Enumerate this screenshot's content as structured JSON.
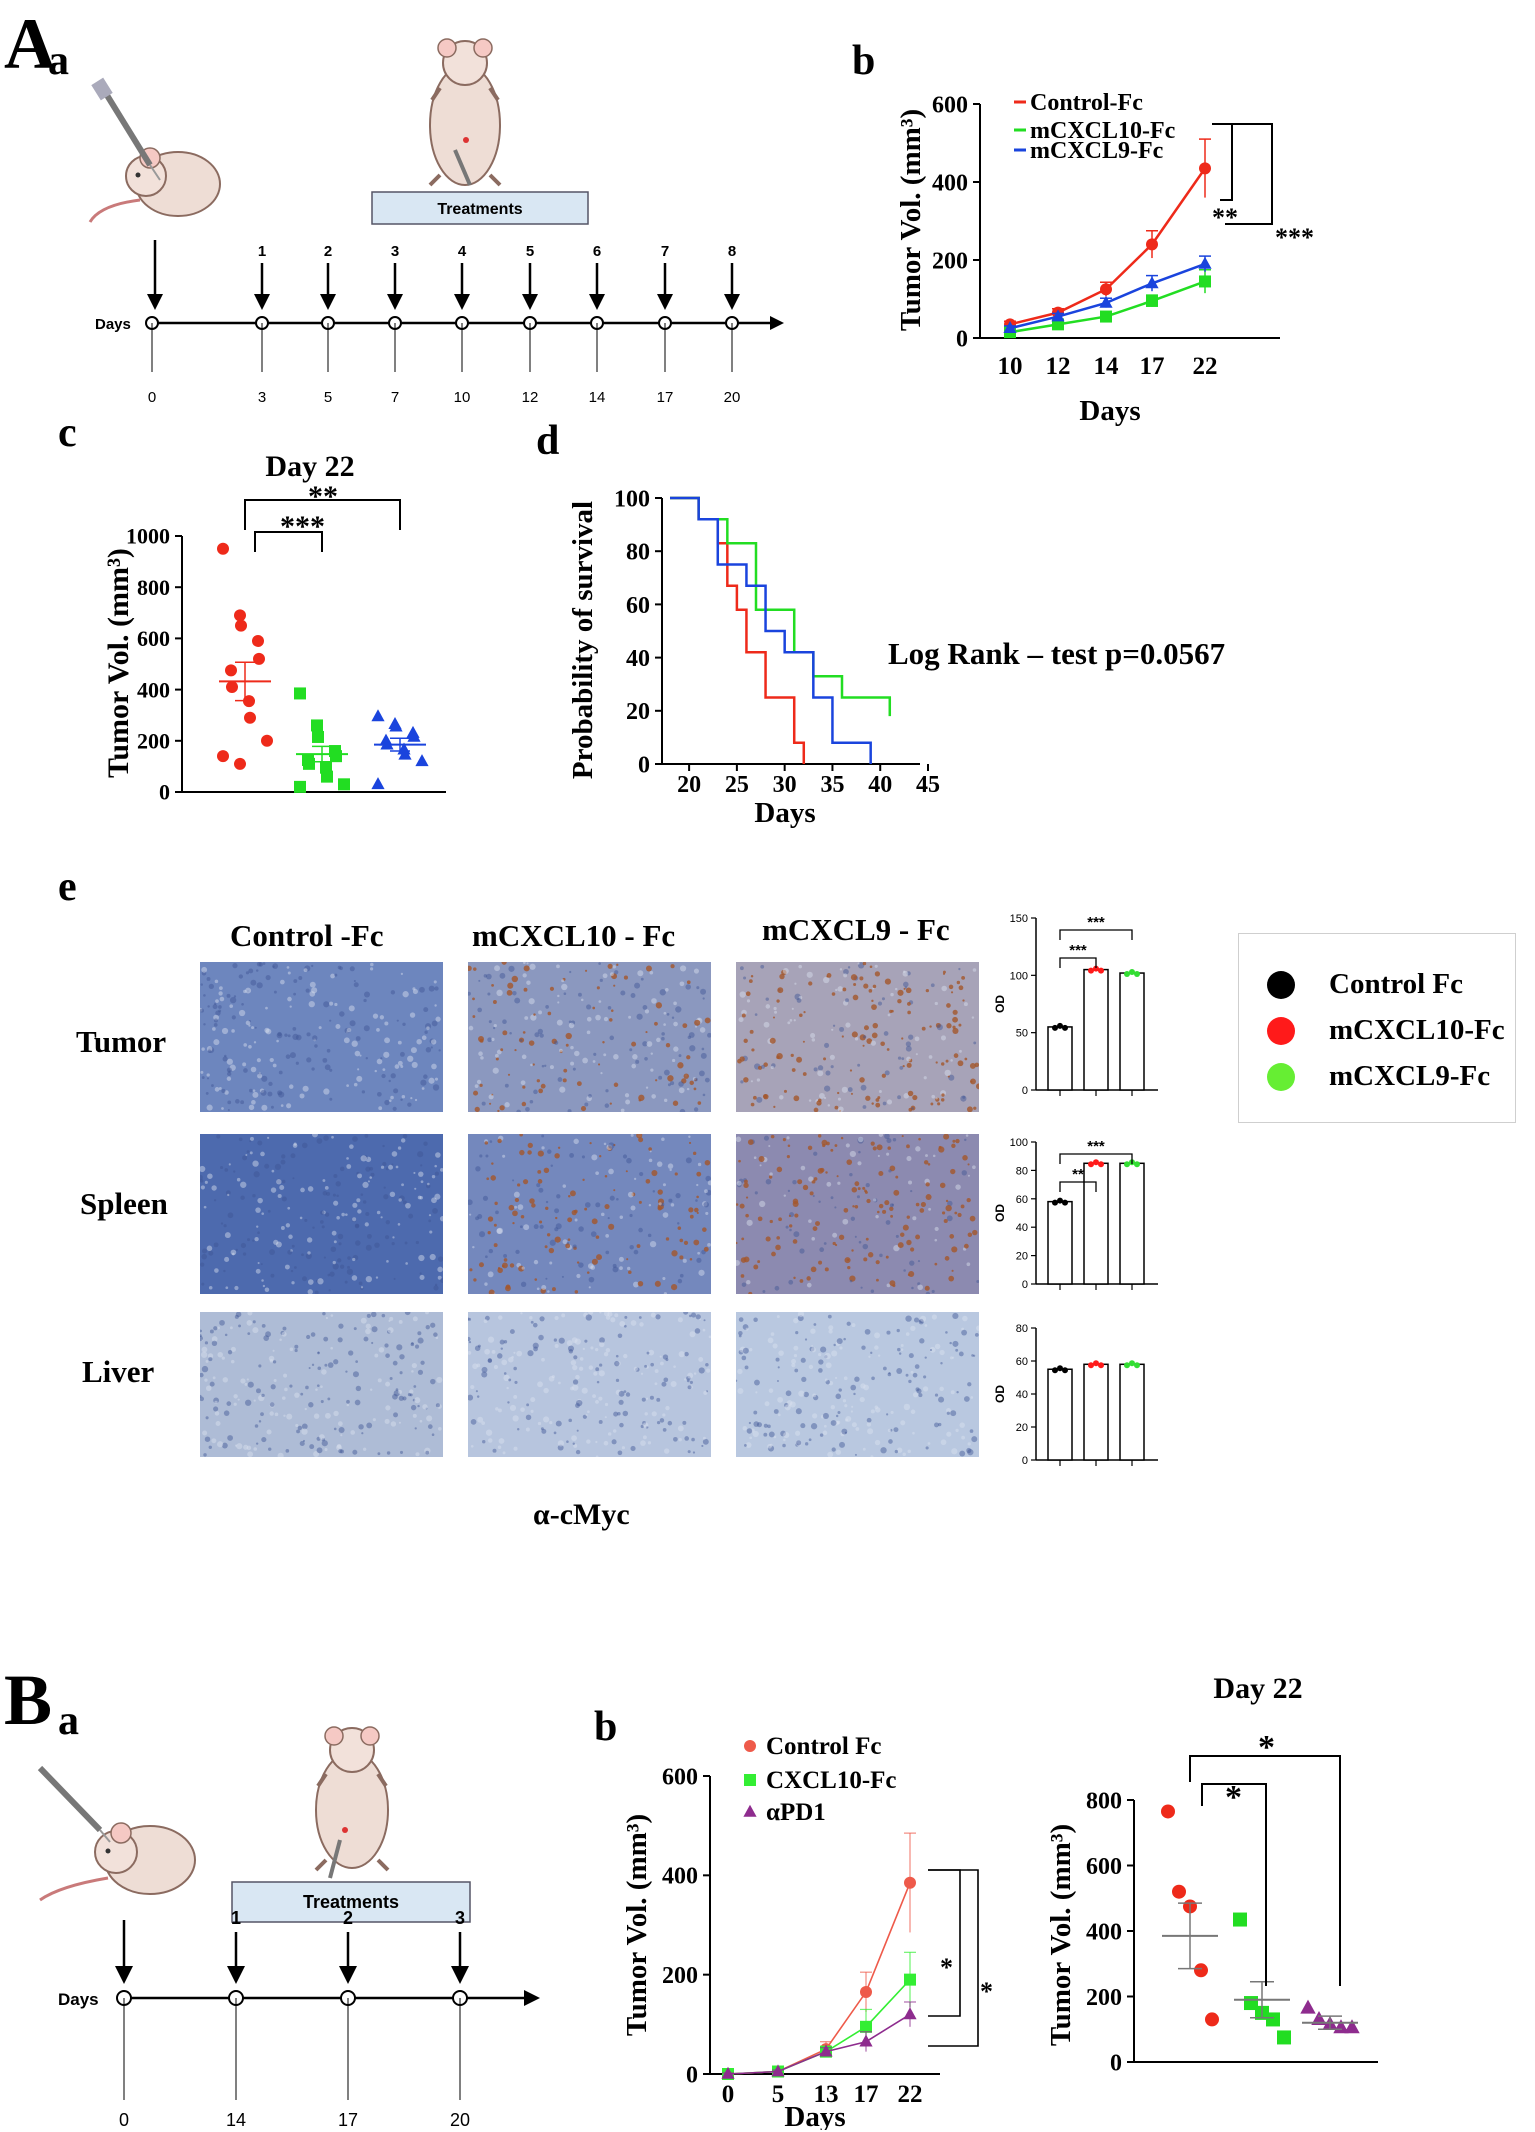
{
  "panel_A": {
    "label": "A",
    "sub_a": "a",
    "timeline": {
      "days_label": "Days",
      "treatment_box": "Treatments",
      "injection_numbers": [
        "1",
        "2",
        "3",
        "4",
        "5",
        "6",
        "7",
        "8"
      ],
      "day_ticks": [
        "0",
        "3",
        "5",
        "7",
        "10",
        "12",
        "14",
        "17",
        "20"
      ]
    },
    "sub_b": "b",
    "sub_c": "c",
    "sub_d": "d",
    "sub_e": "e",
    "log_rank": "Log Rank – test p=0.0567",
    "ihc": {
      "columns": [
        "Control -Fc",
        "mCXCL10 - Fc",
        "mCXCL9 - Fc"
      ],
      "rows": [
        "Tumor",
        "Spleen",
        "Liver"
      ],
      "stain": "α-cMyc",
      "legend": [
        {
          "label": "Control Fc",
          "color": "#000000"
        },
        {
          "label": "mCXCL10-Fc",
          "color": "#ff1a1a"
        },
        {
          "label": "mCXCL9-Fc",
          "color": "#66ee33"
        }
      ]
    }
  },
  "panel_B": {
    "label": "B",
    "sub_a": "a",
    "sub_b": "b",
    "timeline": {
      "days_label": "Days",
      "treatment_box": "Treatments",
      "injection_numbers": [
        "1",
        "2",
        "3"
      ],
      "day_ticks": [
        "0",
        "14",
        "17",
        "20"
      ]
    }
  },
  "colors": {
    "control": "#ee2a1a",
    "cxcl10": "#22dd22",
    "cxcl9": "#1a44dd",
    "apd1": "#8e2c8e",
    "ihc_blue": "#5f78b3",
    "ihc_brown": "#a8572b"
  },
  "chart_data": [
    {
      "id": "A_b",
      "type": "line",
      "title": "",
      "xlabel": "Days",
      "ylabel": "Tumor Vol. (mm3)",
      "categories": [
        "10",
        "12",
        "14",
        "17",
        "22"
      ],
      "ylim": [
        0,
        600
      ],
      "yticks": [
        "0",
        "200",
        "400",
        "600"
      ],
      "series": [
        {
          "name": "Control-Fc",
          "color": "#ee2a1a",
          "values": [
            35,
            65,
            125,
            240,
            435
          ],
          "err": [
            8,
            10,
            18,
            35,
            75
          ]
        },
        {
          "name": "mCXCL10-Fc",
          "color": "#22dd22",
          "values": [
            15,
            35,
            55,
            95,
            145
          ],
          "err": [
            5,
            6,
            10,
            15,
            30
          ]
        },
        {
          "name": "mCXCL9-Fc",
          "color": "#1a44dd",
          "values": [
            25,
            55,
            90,
            140,
            190
          ],
          "err": [
            6,
            8,
            12,
            20,
            20
          ]
        }
      ],
      "significance": [
        "**",
        "***"
      ]
    },
    {
      "id": "A_c",
      "type": "scatter",
      "title": "Day 22",
      "xlabel": "",
      "ylabel": "Tumor Vol. (mm3)",
      "ylim": [
        0,
        1000
      ],
      "yticks": [
        "0",
        "200",
        "400",
        "600",
        "800",
        "1000"
      ],
      "groups": [
        {
          "name": "Control-Fc",
          "color": "#ee2a1a",
          "marker": "circle",
          "mean": 432,
          "sem": 75,
          "values": [
            950,
            690,
            650,
            590,
            520,
            475,
            410,
            355,
            290,
            200,
            140,
            110
          ]
        },
        {
          "name": "mCXCL10-Fc",
          "color": "#22dd22",
          "marker": "square",
          "mean": 148,
          "sem": 30,
          "values": [
            385,
            260,
            215,
            160,
            140,
            125,
            110,
            95,
            60,
            30,
            20
          ]
        },
        {
          "name": "mCXCL9-Fc",
          "color": "#1a44dd",
          "marker": "triangle",
          "mean": 185,
          "sem": 25,
          "values": [
            295,
            265,
            255,
            230,
            215,
            200,
            185,
            165,
            145,
            120,
            30
          ]
        }
      ],
      "significance": [
        "***",
        "**"
      ]
    },
    {
      "id": "A_d",
      "type": "line",
      "title": "",
      "xlabel": "Days",
      "ylabel": "Probability of survival",
      "xlim": [
        18,
        45
      ],
      "xticks": [
        "20",
        "25",
        "30",
        "35",
        "40",
        "45"
      ],
      "ylim": [
        0,
        100
      ],
      "yticks": [
        "0",
        "20",
        "40",
        "60",
        "80",
        "100"
      ],
      "series": [
        {
          "name": "Control-Fc",
          "color": "#ee2a1a",
          "steps": [
            [
              18,
              100
            ],
            [
              21,
              100
            ],
            [
              21,
              92
            ],
            [
              23,
              92
            ],
            [
              23,
              83
            ],
            [
              24,
              83
            ],
            [
              24,
              67
            ],
            [
              25,
              67
            ],
            [
              25,
              58
            ],
            [
              26,
              58
            ],
            [
              26,
              42
            ],
            [
              28,
              42
            ],
            [
              28,
              25
            ],
            [
              31,
              25
            ],
            [
              31,
              8
            ],
            [
              32,
              8
            ],
            [
              32,
              0
            ]
          ]
        },
        {
          "name": "mCXCL10-Fc",
          "color": "#22dd22",
          "steps": [
            [
              18,
              100
            ],
            [
              21,
              100
            ],
            [
              21,
              92
            ],
            [
              24,
              92
            ],
            [
              24,
              83
            ],
            [
              27,
              83
            ],
            [
              27,
              58
            ],
            [
              31,
              58
            ],
            [
              31,
              42
            ],
            [
              33,
              42
            ],
            [
              33,
              33
            ],
            [
              36,
              33
            ],
            [
              36,
              25
            ],
            [
              41,
              25
            ],
            [
              41,
              18
            ]
          ]
        },
        {
          "name": "mCXCL9-Fc",
          "color": "#1a44dd",
          "steps": [
            [
              18,
              100
            ],
            [
              21,
              100
            ],
            [
              21,
              92
            ],
            [
              23,
              92
            ],
            [
              23,
              75
            ],
            [
              26,
              75
            ],
            [
              26,
              67
            ],
            [
              28,
              67
            ],
            [
              28,
              50
            ],
            [
              30,
              50
            ],
            [
              30,
              42
            ],
            [
              33,
              42
            ],
            [
              33,
              25
            ],
            [
              35,
              25
            ],
            [
              35,
              8
            ],
            [
              39,
              8
            ],
            [
              39,
              0
            ]
          ]
        }
      ]
    },
    {
      "id": "A_e_tumor",
      "type": "bar",
      "ylabel": "OD",
      "ylim": [
        0,
        150
      ],
      "yticks": [
        "0",
        "50",
        "100",
        "150"
      ],
      "categories": [
        "Control Fc",
        "mCXCL10-Fc",
        "mCXCL9-Fc"
      ],
      "values": [
        55,
        105,
        102
      ],
      "significance": [
        "***",
        "***"
      ]
    },
    {
      "id": "A_e_spleen",
      "type": "bar",
      "ylabel": "OD",
      "ylim": [
        0,
        100
      ],
      "yticks": [
        "0",
        "20",
        "40",
        "60",
        "80",
        "100"
      ],
      "categories": [
        "Control Fc",
        "mCXCL10-Fc",
        "mCXCL9-Fc"
      ],
      "values": [
        58,
        85,
        85
      ],
      "significance": [
        "**",
        "***"
      ]
    },
    {
      "id": "A_e_liver",
      "type": "bar",
      "ylabel": "OD",
      "ylim": [
        0,
        80
      ],
      "yticks": [
        "0",
        "20",
        "40",
        "60",
        "80"
      ],
      "categories": [
        "Control Fc",
        "mCXCL10-Fc",
        "mCXCL9-Fc"
      ],
      "values": [
        55,
        58,
        58
      ]
    },
    {
      "id": "B_b_line",
      "type": "line",
      "title": "",
      "xlabel": "Days",
      "ylabel": "Tumor Vol. (mm3)",
      "categories": [
        "0",
        "5",
        "13",
        "17",
        "22"
      ],
      "ylim": [
        0,
        600
      ],
      "yticks": [
        "0",
        "200",
        "400",
        "600"
      ],
      "series": [
        {
          "name": "Control Fc",
          "color": "#ee5a4a",
          "marker": "circle",
          "values": [
            0,
            5,
            50,
            165,
            385
          ],
          "err": [
            2,
            3,
            15,
            40,
            100
          ]
        },
        {
          "name": "CXCL10-Fc",
          "color": "#33ee33",
          "marker": "square",
          "values": [
            0,
            5,
            45,
            95,
            190
          ],
          "err": [
            2,
            3,
            10,
            35,
            55
          ]
        },
        {
          "name": "αPD1",
          "color": "#8e2c8e",
          "marker": "triangle",
          "values": [
            0,
            5,
            45,
            65,
            120
          ],
          "err": [
            2,
            3,
            8,
            20,
            25
          ]
        }
      ],
      "significance": [
        "*",
        "*"
      ]
    },
    {
      "id": "B_b_scatter",
      "type": "scatter",
      "title": "Day 22",
      "xlabel": "",
      "ylabel": "Tumor Vol. (mm3)",
      "ylim": [
        0,
        800
      ],
      "yticks": [
        "0",
        "200",
        "400",
        "600",
        "800"
      ],
      "groups": [
        {
          "name": "Control Fc",
          "color": "#ee2a1a",
          "marker": "circle",
          "mean": 385,
          "sem": 100,
          "values": [
            765,
            520,
            475,
            280,
            130
          ]
        },
        {
          "name": "CXCL10-Fc",
          "color": "#22dd22",
          "marker": "square",
          "mean": 190,
          "sem": 55,
          "values": [
            435,
            180,
            150,
            130,
            75
          ]
        },
        {
          "name": "αPD1",
          "color": "#8e2c8e",
          "marker": "triangle",
          "mean": 120,
          "sem": 20,
          "values": [
            165,
            130,
            115,
            105,
            105
          ]
        }
      ],
      "significance": [
        "*",
        "*"
      ]
    }
  ]
}
